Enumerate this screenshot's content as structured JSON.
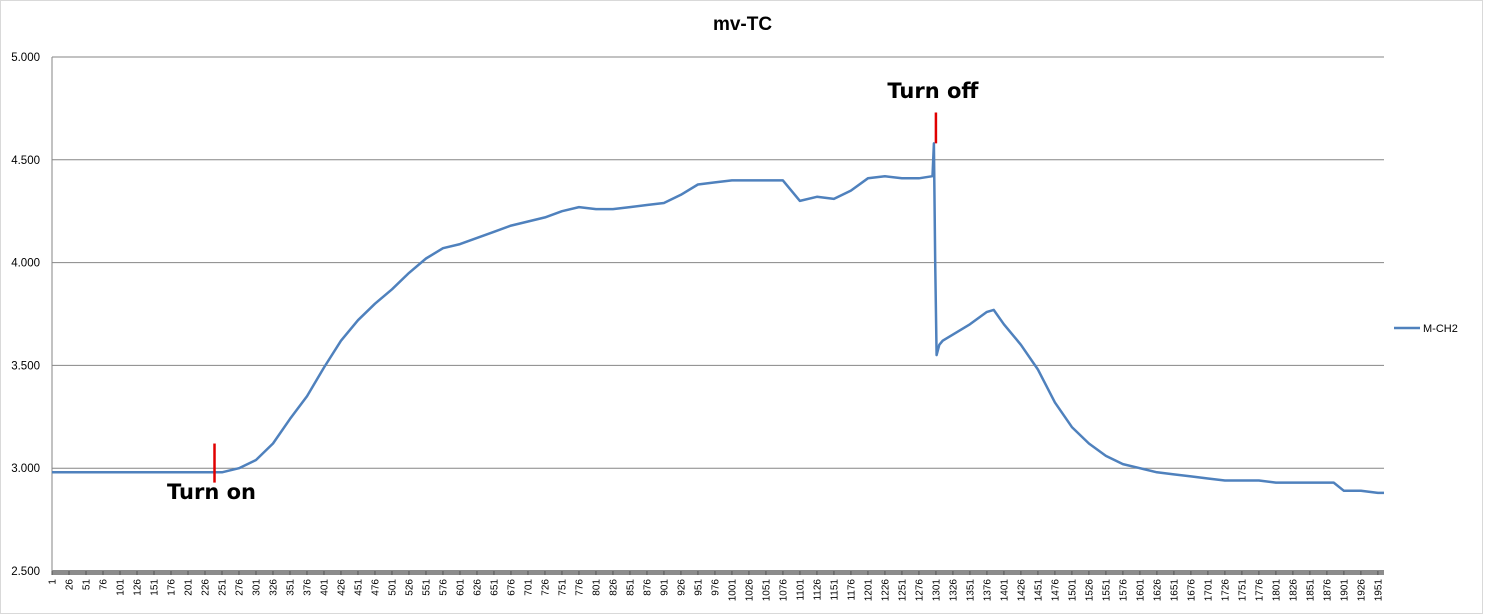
{
  "chart_data": {
    "type": "line",
    "title": "mv-TC",
    "xlabel": "",
    "ylabel": "",
    "ylim": [
      2.5,
      5.0
    ],
    "yticks": [
      "2.500",
      "3.000",
      "3.500",
      "4.000",
      "4.500",
      "5.000"
    ],
    "xlim": [
      1,
      1960
    ],
    "xticks": [
      1,
      26,
      51,
      76,
      101,
      126,
      151,
      176,
      201,
      226,
      251,
      276,
      301,
      326,
      351,
      376,
      401,
      426,
      451,
      476,
      501,
      526,
      551,
      576,
      601,
      626,
      651,
      676,
      701,
      726,
      751,
      776,
      801,
      826,
      851,
      876,
      901,
      926,
      951,
      976,
      1001,
      1026,
      1051,
      1076,
      1101,
      1126,
      1151,
      1176,
      1201,
      1226,
      1251,
      1276,
      1301,
      1326,
      1351,
      1376,
      1401,
      1426,
      1451,
      1476,
      1501,
      1526,
      1551,
      1576,
      1601,
      1626,
      1651,
      1676,
      1701,
      1726,
      1751,
      1776,
      1801,
      1826,
      1851,
      1876,
      1901,
      1926,
      1951
    ],
    "grid": true,
    "legend_position": "right",
    "series": [
      {
        "name": "M-CH2",
        "color": "#4f81bd",
        "x": [
          1,
          51,
          101,
          151,
          201,
          226,
          251,
          276,
          301,
          326,
          351,
          376,
          401,
          426,
          451,
          476,
          501,
          526,
          551,
          576,
          601,
          626,
          651,
          676,
          701,
          726,
          751,
          776,
          801,
          826,
          851,
          876,
          901,
          926,
          951,
          976,
          1001,
          1026,
          1051,
          1076,
          1101,
          1126,
          1151,
          1176,
          1201,
          1226,
          1251,
          1276,
          1296,
          1298,
          1300,
          1302,
          1306,
          1311,
          1326,
          1351,
          1376,
          1386,
          1401,
          1426,
          1451,
          1476,
          1501,
          1526,
          1551,
          1576,
          1601,
          1626,
          1651,
          1676,
          1701,
          1726,
          1751,
          1776,
          1801,
          1826,
          1851,
          1876,
          1886,
          1901,
          1926,
          1951,
          1960
        ],
        "y": [
          2.98,
          2.98,
          2.98,
          2.98,
          2.98,
          2.98,
          2.98,
          3.0,
          3.04,
          3.12,
          3.24,
          3.35,
          3.49,
          3.62,
          3.72,
          3.8,
          3.87,
          3.95,
          4.02,
          4.07,
          4.09,
          4.12,
          4.15,
          4.18,
          4.2,
          4.22,
          4.25,
          4.27,
          4.26,
          4.26,
          4.27,
          4.28,
          4.29,
          4.33,
          4.38,
          4.39,
          4.4,
          4.4,
          4.4,
          4.4,
          4.3,
          4.32,
          4.31,
          4.35,
          4.41,
          4.42,
          4.41,
          4.41,
          4.42,
          4.58,
          4.0,
          3.55,
          3.6,
          3.62,
          3.65,
          3.7,
          3.76,
          3.77,
          3.7,
          3.6,
          3.48,
          3.32,
          3.2,
          3.12,
          3.06,
          3.02,
          3.0,
          2.98,
          2.97,
          2.96,
          2.95,
          2.94,
          2.94,
          2.94,
          2.93,
          2.93,
          2.93,
          2.93,
          2.93,
          2.89,
          2.89,
          2.88,
          2.88
        ]
      }
    ],
    "annotations": [
      {
        "text": "Turn on",
        "x": 240,
        "y": 3.0
      },
      {
        "text": "Turn off",
        "x": 1301,
        "y": 4.6
      }
    ]
  }
}
